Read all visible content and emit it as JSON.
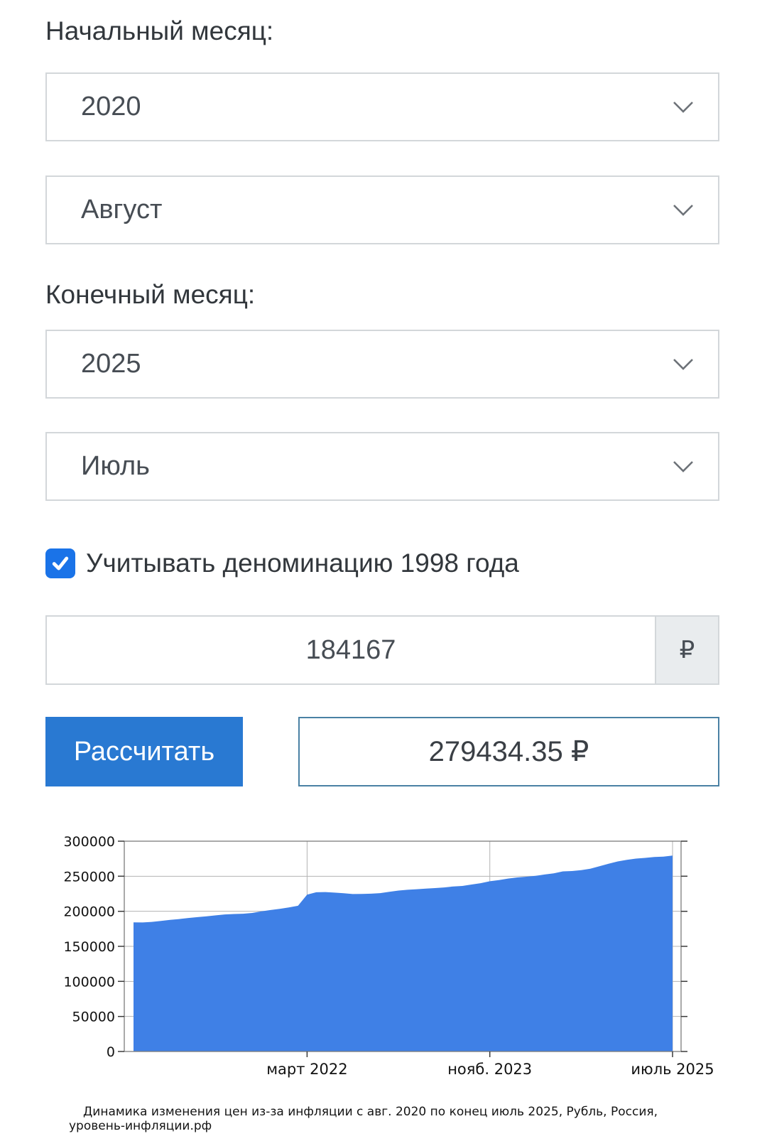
{
  "form": {
    "start_month_label": "Начальный месяц:",
    "start_year_value": "2020",
    "start_month_value": "Август",
    "end_month_label": "Конечный месяц:",
    "end_year_value": "2025",
    "end_month_value": "Июль",
    "denomination_checkbox": {
      "checked": true,
      "label": "Учитывать деноминацию 1998 года"
    },
    "amount": {
      "value": "184167",
      "currency_symbol": "₽"
    },
    "calculate_button_label": "Рассчитать",
    "result_value": "279434.35 ₽"
  },
  "colors": {
    "checkbox_blue": "#1a73e8",
    "button_blue": "#2979d2",
    "result_border_blue": "#4a81a4",
    "chart_area_blue": "#3f80e6",
    "grid_gray": "#b3b3b3",
    "spine_gray": "#7c7c7c"
  },
  "chart_data": {
    "type": "area",
    "title": "",
    "caption": "Динамика изменения цен из-за инфляции с авг. 2020 по конец июль 2025, Рубль, Россия, уровень-инфляции.рф",
    "xlabel": "",
    "ylabel": "",
    "ylim": [
      0,
      300000
    ],
    "grid": true,
    "yticks": [
      0,
      50000,
      100000,
      150000,
      200000,
      250000,
      300000
    ],
    "xticks": [
      {
        "label": "март 2022",
        "month_index": 19
      },
      {
        "label": "нояб. 2023",
        "month_index": 39
      },
      {
        "label": "июль 2025",
        "month_index": 59
      }
    ],
    "x_start_label": "авг. 2020",
    "x_end_label": "июль 2025",
    "values": [
      184167,
      184040,
      184830,
      186140,
      187690,
      188950,
      190420,
      191680,
      192790,
      194210,
      195550,
      196160,
      196490,
      197670,
      199870,
      201790,
      203440,
      205450,
      207860,
      223680,
      227170,
      227440,
      226640,
      225760,
      224580,
      224700,
      225100,
      225930,
      227700,
      229610,
      230660,
      231520,
      232400,
      233120,
      233980,
      235450,
      236110,
      238170,
      240140,
      242810,
      244580,
      246690,
      248360,
      249330,
      250580,
      252430,
      254050,
      256940,
      257460,
      258690,
      260630,
      264360,
      267850,
      271150,
      273340,
      275120,
      276220,
      277410,
      277960,
      279434
    ]
  }
}
